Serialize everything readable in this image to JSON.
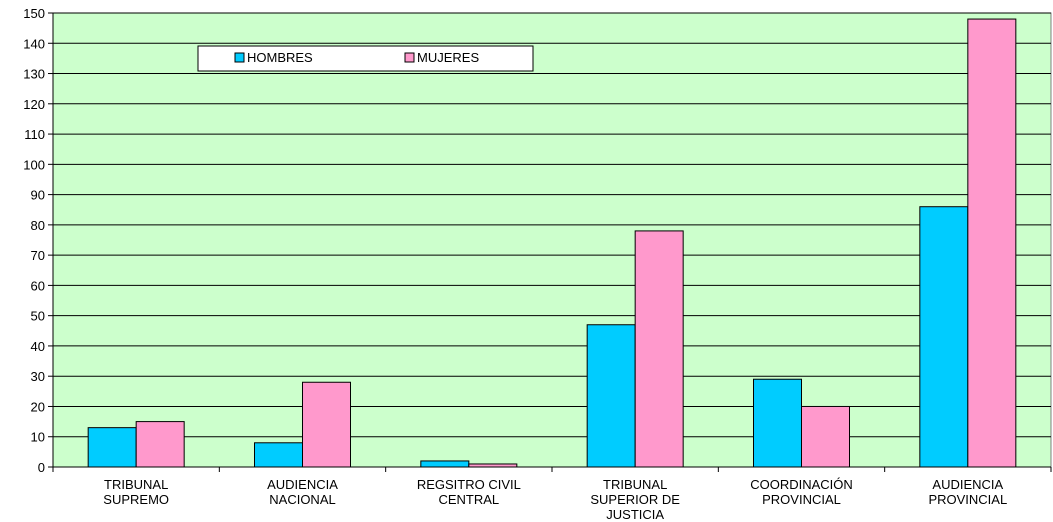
{
  "chart_data": {
    "type": "bar",
    "categories": [
      [
        "TRIBUNAL",
        "SUPREMO"
      ],
      [
        "AUDIENCIA",
        "NACIONAL"
      ],
      [
        "REGSITRO CIVIL",
        "CENTRAL"
      ],
      [
        "TRIBUNAL",
        "SUPERIOR DE",
        "JUSTICIA"
      ],
      [
        "COORDINACIÓN",
        "PROVINCIAL"
      ],
      [
        "AUDIENCIA",
        "PROVINCIAL"
      ]
    ],
    "series": [
      {
        "name": "HOMBRES",
        "color": "#00CCFF",
        "values": [
          13,
          8,
          2,
          47,
          29,
          86
        ]
      },
      {
        "name": "MUJERES",
        "color": "#FF99CC",
        "values": [
          15,
          28,
          1,
          78,
          20,
          148
        ]
      }
    ],
    "ylim": [
      0,
      150
    ],
    "yticks": [
      0,
      10,
      20,
      30,
      40,
      50,
      60,
      70,
      80,
      90,
      100,
      110,
      120,
      130,
      140,
      150
    ],
    "grid": true,
    "legend_position": "top-left",
    "plot_background": "#CCFFCC"
  }
}
